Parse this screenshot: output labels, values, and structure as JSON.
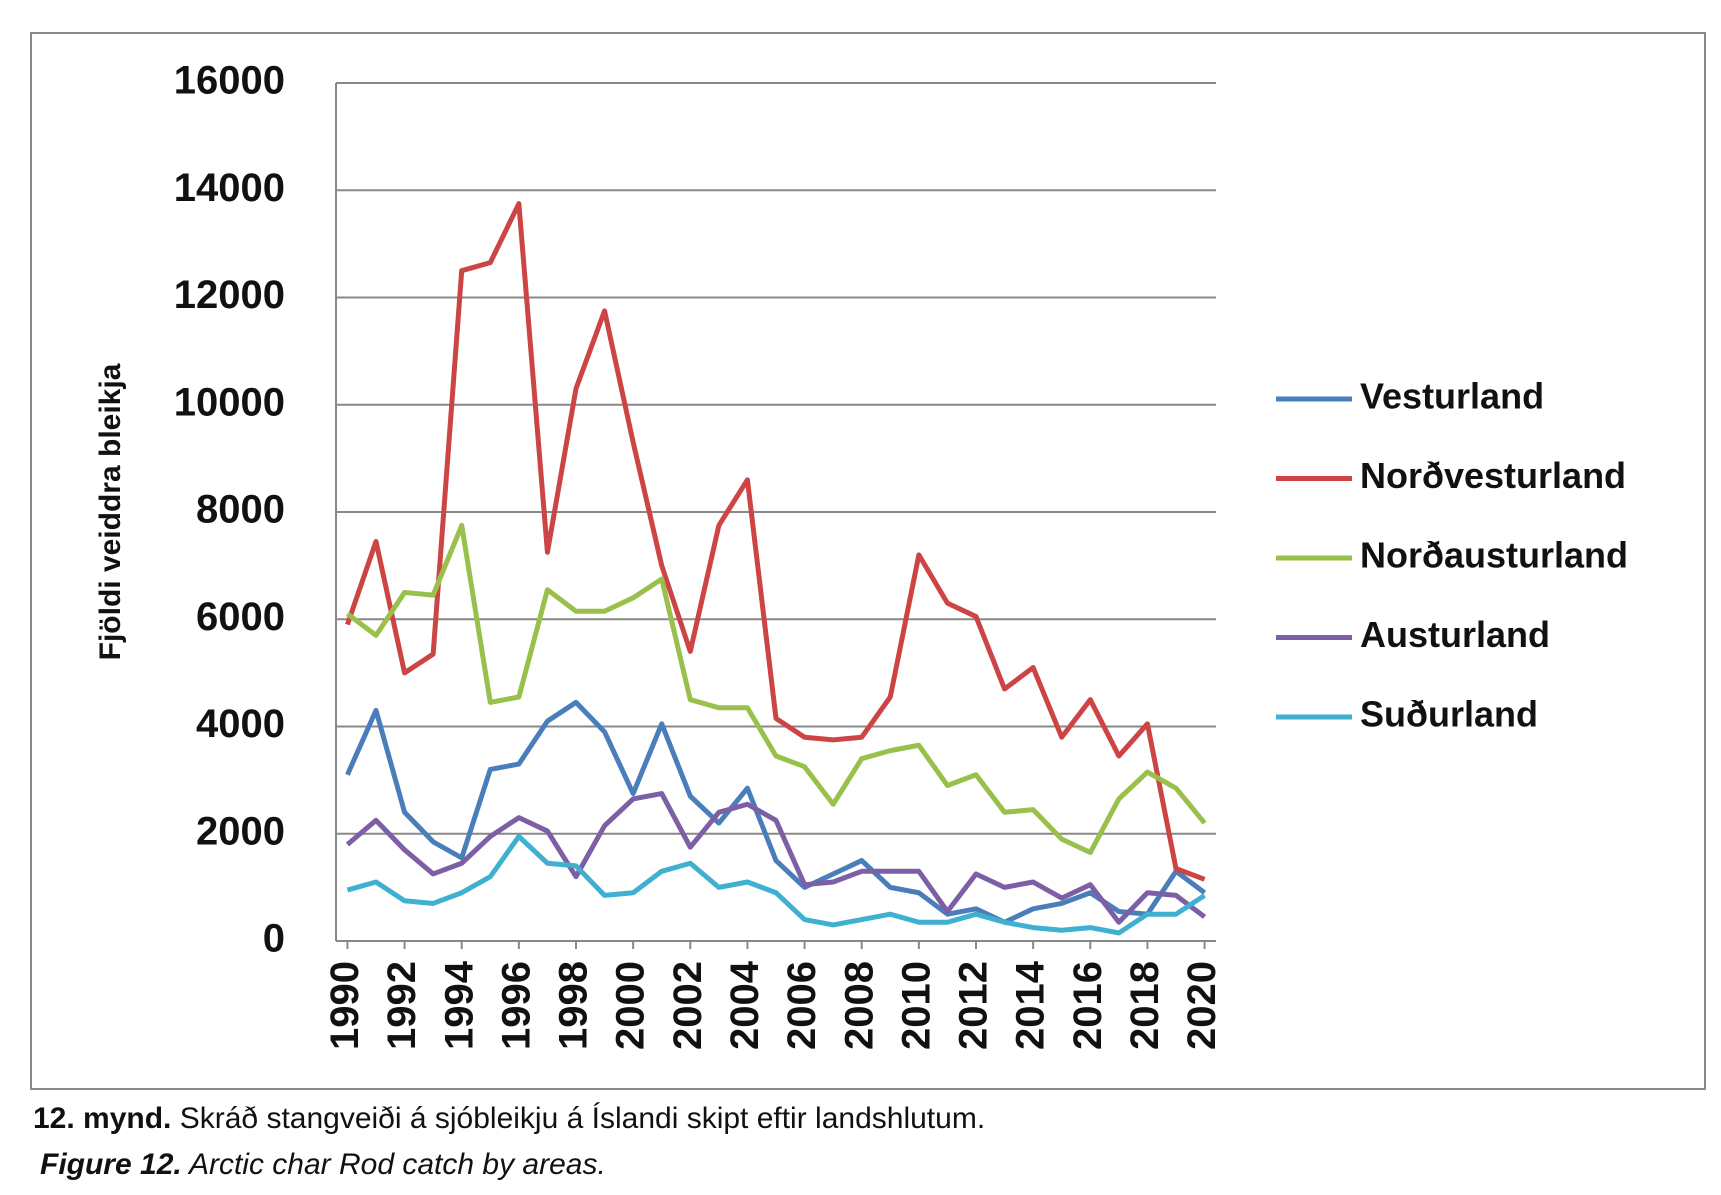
{
  "chart_data": {
    "type": "line",
    "ylabel": "Fjöldi veiddra bleikja",
    "x": [
      1990,
      1991,
      1992,
      1993,
      1994,
      1995,
      1996,
      1997,
      1998,
      1999,
      2000,
      2001,
      2002,
      2003,
      2004,
      2005,
      2006,
      2007,
      2008,
      2009,
      2010,
      2011,
      2012,
      2013,
      2014,
      2015,
      2016,
      2017,
      2018,
      2019,
      2020
    ],
    "xlim": [
      1989.6,
      2020.4
    ],
    "xticks": [
      1990,
      1992,
      1994,
      1996,
      1998,
      2000,
      2002,
      2004,
      2006,
      2008,
      2010,
      2012,
      2014,
      2016,
      2018,
      2020
    ],
    "ylim": [
      0,
      16000
    ],
    "yticks": [
      0,
      2000,
      4000,
      6000,
      8000,
      10000,
      12000,
      14000,
      16000
    ],
    "grid": true,
    "legend": "right",
    "series": [
      {
        "name": "Vesturland",
        "color": "#4a7ebb",
        "values": [
          3100,
          4300,
          2400,
          1850,
          1550,
          3200,
          3300,
          4100,
          4450,
          3900,
          2750,
          4050,
          2700,
          2200,
          2850,
          1500,
          1000,
          1250,
          1500,
          1000,
          900,
          500,
          600,
          350,
          600,
          700,
          900,
          550,
          500,
          1300,
          900
        ]
      },
      {
        "name": "Norðvesturland",
        "color": "#cc4444",
        "values": [
          5900,
          7450,
          5000,
          5350,
          12500,
          12650,
          13750,
          7250,
          10300,
          11750,
          9300,
          7000,
          5400,
          7750,
          8600,
          4150,
          3800,
          3750,
          3800,
          4550,
          7200,
          6300,
          6050,
          4700,
          5100,
          3800,
          4500,
          3450,
          4050,
          1350,
          1150
        ]
      },
      {
        "name": "Norðausturland",
        "color": "#98c04a",
        "values": [
          6100,
          5700,
          6500,
          6450,
          7750,
          4450,
          4550,
          6550,
          6150,
          6150,
          6400,
          6750,
          4500,
          4350,
          4350,
          3450,
          3250,
          2550,
          3400,
          3550,
          3650,
          2900,
          3100,
          2400,
          2450,
          1900,
          1650,
          2650,
          3150,
          2850,
          2200
        ]
      },
      {
        "name": "Austurland",
        "color": "#7d5fa5",
        "values": [
          1800,
          2250,
          1700,
          1250,
          1450,
          1950,
          2300,
          2050,
          1200,
          2150,
          2650,
          2750,
          1750,
          2400,
          2550,
          2250,
          1050,
          1100,
          1300,
          1300,
          1300,
          550,
          1250,
          1000,
          1100,
          800,
          1050,
          350,
          900,
          850,
          450
        ]
      },
      {
        "name": "Suðurland",
        "color": "#3fb0d0",
        "values": [
          950,
          1100,
          750,
          700,
          900,
          1200,
          1950,
          1450,
          1400,
          850,
          900,
          1300,
          1450,
          1000,
          1100,
          900,
          400,
          300,
          400,
          500,
          350,
          350,
          500,
          350,
          250,
          200,
          250,
          150,
          500,
          500,
          850
        ]
      }
    ]
  },
  "caption": {
    "number": "12. mynd.",
    "text": "Skráð stangveiði á sjóbleikju á Íslandi skipt eftir landshlutum.",
    "figure": "Figure 12.",
    "english": "Arctic char Rod catch by areas."
  }
}
